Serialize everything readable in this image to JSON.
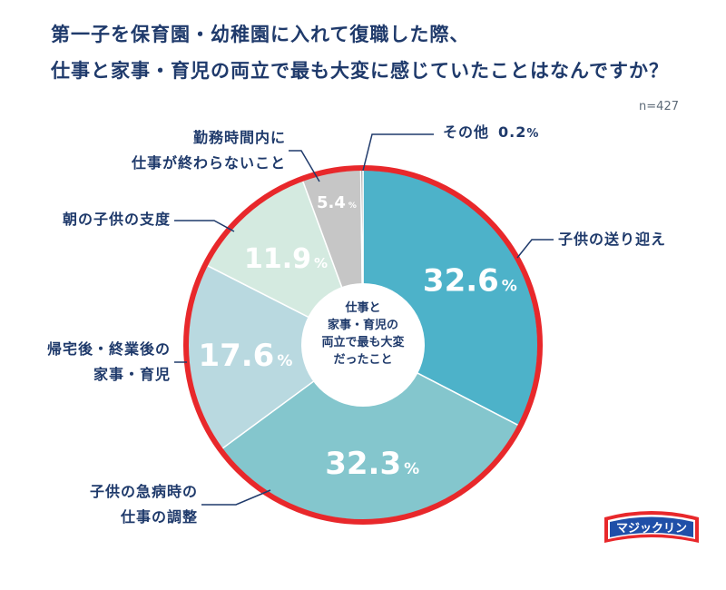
{
  "title_lines": [
    "第一子を保育園・幼稚園に入れて復職した際、",
    "仕事と家事・育児の両立で最も大変に感じていたことはなんですか？"
  ],
  "sample_size": "n=427",
  "center_label_lines": [
    "仕事と",
    "家事・育児の",
    "両立で最も大変",
    "だったこと"
  ],
  "logo_text": "マジックリン",
  "colors": {
    "title": "#1f3a6b",
    "ring": "#e8282b",
    "leader": "#1f3a6b"
  },
  "chart_data": {
    "type": "pie",
    "variant": "donut",
    "start": "12 o'clock, clockwise",
    "slices": [
      {
        "label_lines": [
          "子供の送り迎え"
        ],
        "value": 32.6,
        "value_text": "32.6",
        "unit": "%",
        "color": "#4db2c9"
      },
      {
        "label_lines": [
          "子供の急病時の",
          "仕事の調整"
        ],
        "value": 32.3,
        "value_text": "32.3",
        "unit": "%",
        "color": "#84c6cd"
      },
      {
        "label_lines": [
          "帰宅後・終業後の",
          "家事・育児"
        ],
        "value": 17.6,
        "value_text": "17.6",
        "unit": "%",
        "color": "#b9d9e0"
      },
      {
        "label_lines": [
          "朝の子供の支度"
        ],
        "value": 11.9,
        "value_text": "11.9",
        "unit": "%",
        "color": "#d4eae0"
      },
      {
        "label_lines": [
          "勤務時間内に",
          "仕事が終わらないこと"
        ],
        "value": 5.4,
        "value_text": "5.4",
        "unit": "%",
        "color": "#c6c6c6"
      },
      {
        "label_lines": [
          "その他"
        ],
        "value": 0.2,
        "value_text": "0.2",
        "unit": "%",
        "color": "#8a8a8a"
      }
    ]
  }
}
